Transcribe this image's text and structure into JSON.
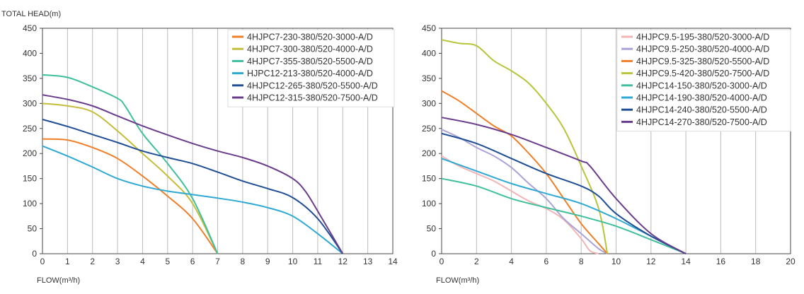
{
  "chart_data": [
    {
      "type": "line",
      "ylabel": "TOTAL HEAD(m)",
      "xlabel": "FLOW(m³/h)",
      "xlim": [
        0,
        14
      ],
      "ylim": [
        0,
        450
      ],
      "xticks": [
        0,
        1,
        2,
        3,
        4,
        5,
        6,
        7,
        8,
        9,
        10,
        11,
        12,
        13,
        14
      ],
      "yticks": [
        0,
        50,
        100,
        150,
        200,
        250,
        300,
        350,
        400,
        450
      ],
      "grid": "vertical",
      "legend": "top-right",
      "series": [
        {
          "name": "4HJPC7-230-380/520-3000-A/D",
          "color": "#f07f2a",
          "points": [
            [
              0,
              229
            ],
            [
              1,
              227
            ],
            [
              2,
              212
            ],
            [
              3,
              190
            ],
            [
              4,
              155
            ],
            [
              5,
              115
            ],
            [
              6,
              70
            ],
            [
              7,
              0
            ]
          ]
        },
        {
          "name": "4HJPC7-300-380/520-4000-A/D",
          "color": "#c5bd3c",
          "points": [
            [
              0,
              300
            ],
            [
              1,
              295
            ],
            [
              2,
              283
            ],
            [
              3,
              245
            ],
            [
              4,
              200
            ],
            [
              5,
              155
            ],
            [
              6,
              100
            ],
            [
              7,
              0
            ]
          ]
        },
        {
          "name": "4HJPC7-355-380/520-5500-A/D",
          "color": "#3fbf9d",
          "points": [
            [
              0,
              357
            ],
            [
              1,
              352
            ],
            [
              2,
              333
            ],
            [
              3,
              310
            ],
            [
              3.3,
              295
            ],
            [
              4,
              240
            ],
            [
              5,
              180
            ],
            [
              6,
              110
            ],
            [
              7,
              0
            ]
          ]
        },
        {
          "name": "HJPC12-213-380/520-4000-A/D",
          "color": "#2fa9d3",
          "points": [
            [
              0,
              215
            ],
            [
              1,
              195
            ],
            [
              2,
              173
            ],
            [
              3,
              150
            ],
            [
              4,
              135
            ],
            [
              5,
              125
            ],
            [
              6,
              118
            ],
            [
              7,
              111
            ],
            [
              8,
              103
            ],
            [
              9,
              92
            ],
            [
              10,
              75
            ],
            [
              11,
              40
            ],
            [
              12,
              0
            ]
          ]
        },
        {
          "name": "4HJPC12-265-380/520-5500-A/D",
          "color": "#1f4e94",
          "points": [
            [
              0,
              268
            ],
            [
              1,
              254
            ],
            [
              2,
              238
            ],
            [
              3,
              222
            ],
            [
              4,
              205
            ],
            [
              5,
              192
            ],
            [
              6,
              180
            ],
            [
              7,
              163
            ],
            [
              8,
              145
            ],
            [
              9,
              130
            ],
            [
              10,
              112
            ],
            [
              11,
              70
            ],
            [
              12,
              0
            ]
          ]
        },
        {
          "name": "4HJPC12-315-380/520-7500-A/D",
          "color": "#6a3d8c",
          "points": [
            [
              0,
              317
            ],
            [
              1,
              308
            ],
            [
              2,
              295
            ],
            [
              3,
              275
            ],
            [
              4,
              255
            ],
            [
              5,
              237
            ],
            [
              6,
              220
            ],
            [
              7,
              205
            ],
            [
              8,
              192
            ],
            [
              9,
              175
            ],
            [
              10,
              150
            ],
            [
              10.5,
              125
            ],
            [
              11,
              85
            ],
            [
              12,
              0
            ]
          ]
        }
      ]
    },
    {
      "type": "line",
      "ylabel": "",
      "xlabel": "FLOW(m³/h)",
      "xlim": [
        0,
        20
      ],
      "ylim": [
        0,
        450
      ],
      "xticks": [
        0,
        2,
        4,
        6,
        8,
        10,
        12,
        14,
        16,
        18,
        20
      ],
      "yticks": [
        0,
        50,
        100,
        150,
        200,
        250,
        300,
        350,
        400,
        450
      ],
      "grid": "vertical",
      "legend": "top-right",
      "series": [
        {
          "name": "4HJPC9.5-195-380/520-3000-A/D",
          "color": "#f2b5b5",
          "points": [
            [
              0,
              195
            ],
            [
              1,
              175
            ],
            [
              2,
              160
            ],
            [
              3,
              145
            ],
            [
              4,
              125
            ],
            [
              5,
              105
            ],
            [
              6,
              90
            ],
            [
              7,
              68
            ],
            [
              8,
              30
            ],
            [
              8.5,
              6
            ],
            [
              9,
              0
            ]
          ]
        },
        {
          "name": "4HJPC9.5-250-380/520-4000-A/D",
          "color": "#a9a3d6",
          "points": [
            [
              0,
              248
            ],
            [
              1,
              232
            ],
            [
              2,
              212
            ],
            [
              3,
              195
            ],
            [
              4,
              172
            ],
            [
              5,
              140
            ],
            [
              6,
              110
            ],
            [
              7,
              70
            ],
            [
              8,
              40
            ],
            [
              9,
              10
            ],
            [
              9.5,
              0
            ]
          ]
        },
        {
          "name": "4HJPC9.5-325-380/520-5500-A/D",
          "color": "#f07f2a",
          "points": [
            [
              0,
              325
            ],
            [
              1,
              305
            ],
            [
              2,
              280
            ],
            [
              3,
              255
            ],
            [
              4,
              235
            ],
            [
              5,
              200
            ],
            [
              6,
              160
            ],
            [
              7,
              110
            ],
            [
              8,
              60
            ],
            [
              9,
              20
            ],
            [
              9.5,
              0
            ]
          ]
        },
        {
          "name": "4HJPC9.5-420-380/520-7500-A/D",
          "color": "#b8c43a",
          "points": [
            [
              0,
              427
            ],
            [
              1,
              420
            ],
            [
              2,
              415
            ],
            [
              3,
              385
            ],
            [
              4,
              365
            ],
            [
              5,
              340
            ],
            [
              6,
              300
            ],
            [
              7,
              250
            ],
            [
              8,
              175
            ],
            [
              9,
              90
            ],
            [
              9.5,
              0
            ]
          ]
        },
        {
          "name": "4HJPC14-150-380/520-3000-A/D",
          "color": "#3fbf9d",
          "points": [
            [
              0,
              150
            ],
            [
              2,
              135
            ],
            [
              4,
              110
            ],
            [
              6,
              92
            ],
            [
              8,
              75
            ],
            [
              10,
              55
            ],
            [
              12,
              28
            ],
            [
              14,
              0
            ]
          ]
        },
        {
          "name": "4HJPC14-190-380/520-4000-A/D",
          "color": "#2fa9d3",
          "points": [
            [
              0,
              190
            ],
            [
              2,
              165
            ],
            [
              4,
              140
            ],
            [
              6,
              120
            ],
            [
              8,
              100
            ],
            [
              10,
              70
            ],
            [
              12,
              35
            ],
            [
              14,
              0
            ]
          ]
        },
        {
          "name": "4HJPC14-240-380/520-5500-A/D",
          "color": "#1f4e94",
          "points": [
            [
              0,
              240
            ],
            [
              2,
              220
            ],
            [
              4,
              190
            ],
            [
              6,
              160
            ],
            [
              8,
              135
            ],
            [
              9,
              115
            ],
            [
              10,
              80
            ],
            [
              12,
              35
            ],
            [
              14,
              0
            ]
          ]
        },
        {
          "name": "4HJPC14-270-380/520-7500-A/D",
          "color": "#6a3d8c",
          "points": [
            [
              0,
              272
            ],
            [
              2,
              258
            ],
            [
              4,
              238
            ],
            [
              6,
              212
            ],
            [
              8,
              185
            ],
            [
              8.5,
              175
            ],
            [
              10,
              110
            ],
            [
              12,
              40
            ],
            [
              14,
              0
            ]
          ]
        }
      ]
    }
  ]
}
